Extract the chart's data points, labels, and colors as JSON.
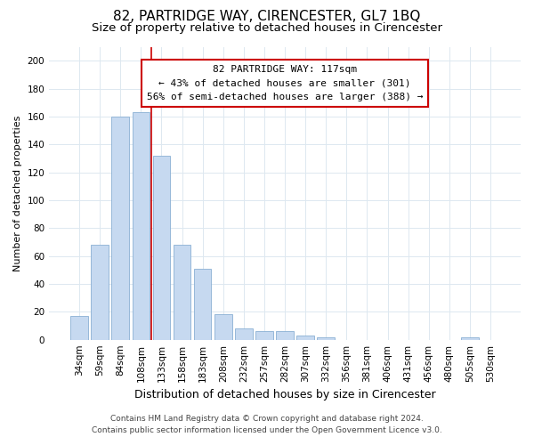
{
  "title": "82, PARTRIDGE WAY, CIRENCESTER, GL7 1BQ",
  "subtitle": "Size of property relative to detached houses in Cirencester",
  "xlabel": "Distribution of detached houses by size in Cirencester",
  "ylabel": "Number of detached properties",
  "bar_color": "#c6d9f0",
  "bar_edge_color": "#8ab0d4",
  "categories": [
    "34sqm",
    "59sqm",
    "84sqm",
    "108sqm",
    "133sqm",
    "158sqm",
    "183sqm",
    "208sqm",
    "232sqm",
    "257sqm",
    "282sqm",
    "307sqm",
    "332sqm",
    "356sqm",
    "381sqm",
    "406sqm",
    "431sqm",
    "456sqm",
    "480sqm",
    "505sqm",
    "530sqm"
  ],
  "values": [
    17,
    68,
    160,
    163,
    132,
    68,
    51,
    18,
    8,
    6,
    6,
    3,
    2,
    0,
    0,
    0,
    0,
    0,
    0,
    2,
    0
  ],
  "ylim": [
    0,
    210
  ],
  "yticks": [
    0,
    20,
    40,
    60,
    80,
    100,
    120,
    140,
    160,
    180,
    200
  ],
  "vline_x_index": 3.5,
  "vline_color": "#cc0000",
  "annotation_title": "82 PARTRIDGE WAY: 117sqm",
  "annotation_line1": "← 43% of detached houses are smaller (301)",
  "annotation_line2": "56% of semi-detached houses are larger (388) →",
  "annotation_box_color": "#ffffff",
  "annotation_box_edge": "#cc0000",
  "footer1": "Contains HM Land Registry data © Crown copyright and database right 2024.",
  "footer2": "Contains public sector information licensed under the Open Government Licence v3.0.",
  "background_color": "#ffffff",
  "grid_color": "#dde8f0",
  "title_fontsize": 11,
  "subtitle_fontsize": 9.5,
  "xlabel_fontsize": 9,
  "ylabel_fontsize": 8,
  "tick_fontsize": 7.5,
  "footer_fontsize": 6.5
}
